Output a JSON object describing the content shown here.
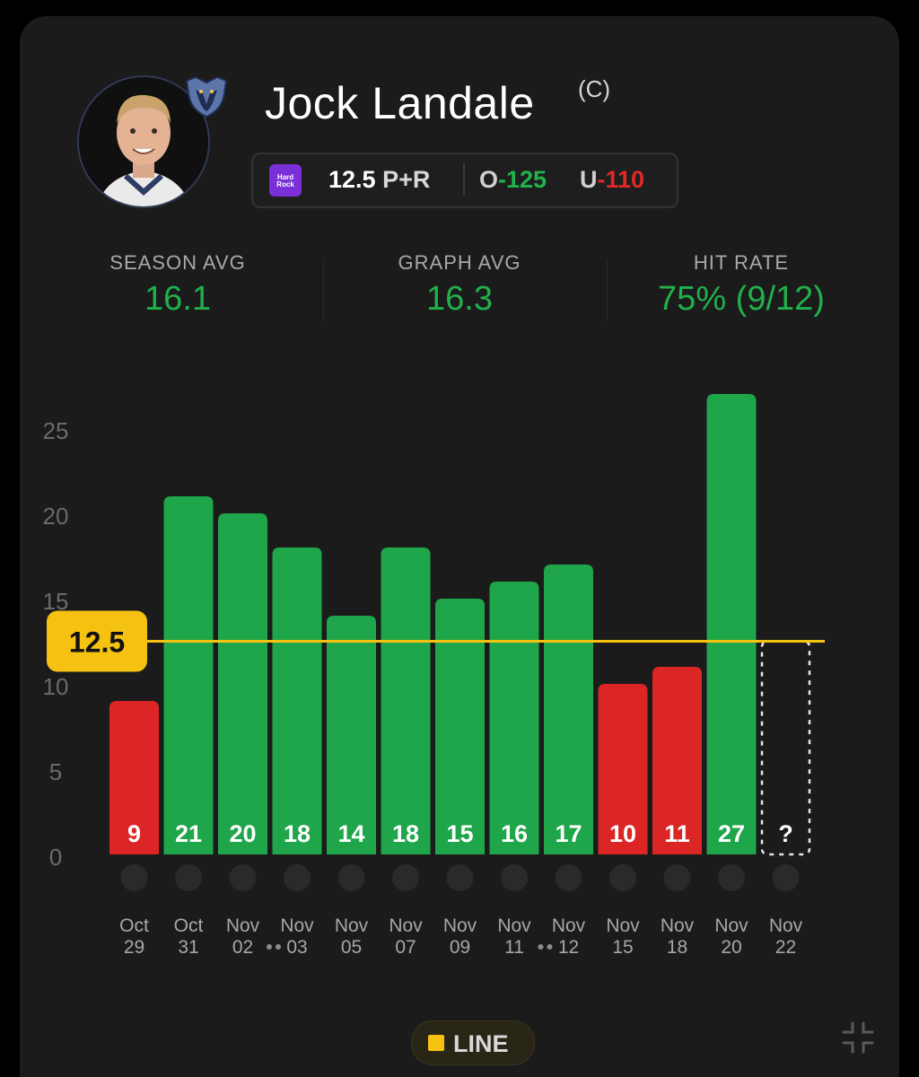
{
  "player": {
    "name": "Jock Landale",
    "position": "(C)"
  },
  "odds": {
    "sportsbook_icon": "hard-rock-bet-logo",
    "line_value": "12.5",
    "line_unit": "P+R",
    "over_label": "O",
    "over_odds": "-125",
    "under_label": "U",
    "under_odds": "-110"
  },
  "stats": {
    "season_avg_label": "SEASON AVG",
    "season_avg_value": "16.1",
    "graph_avg_label": "GRAPH AVG",
    "graph_avg_value": "16.3",
    "hit_rate_label": "HIT RATE",
    "hit_rate_value": "75% (9/12)"
  },
  "colors": {
    "over": "#1fa64a",
    "under": "#dc2626",
    "line": "#f5c211",
    "accent_text_green": "#20b04c"
  },
  "chart_data": {
    "type": "bar",
    "line_label": "12.5",
    "line": 12.5,
    "ylim": [
      0,
      25
    ],
    "yticks": [
      0,
      5,
      10,
      15,
      20,
      25
    ],
    "grid": false,
    "games": [
      {
        "value": 9,
        "label": "9",
        "month": "Oct",
        "day": "29",
        "opponent": "suns-logo",
        "double": false
      },
      {
        "value": 21,
        "label": "21",
        "month": "Oct",
        "day": "31",
        "opponent": "lakers-logo",
        "double": false
      },
      {
        "value": 20,
        "label": "20",
        "month": "Nov",
        "day": "02",
        "opponent": "raptors-logo",
        "double": true
      },
      {
        "value": 18,
        "label": "18",
        "month": "Nov",
        "day": "03",
        "opponent": "pistons-logo",
        "double": false
      },
      {
        "value": 14,
        "label": "14",
        "month": "Nov",
        "day": "05",
        "opponent": "rockets-logo",
        "double": false
      },
      {
        "value": 18,
        "label": "18",
        "month": "Nov",
        "day": "07",
        "opponent": "mavericks-logo",
        "double": false
      },
      {
        "value": 15,
        "label": "15",
        "month": "Nov",
        "day": "09",
        "opponent": "thunder-logo",
        "double": false
      },
      {
        "value": 16,
        "label": "16",
        "month": "Nov",
        "day": "11",
        "opponent": "knicks-logo",
        "double": true
      },
      {
        "value": 17,
        "label": "17",
        "month": "Nov",
        "day": "12",
        "opponent": "celtics-logo",
        "double": false
      },
      {
        "value": 10,
        "label": "10",
        "month": "Nov",
        "day": "15",
        "opponent": "cavaliers-logo",
        "double": false
      },
      {
        "value": 11,
        "label": "11",
        "month": "Nov",
        "day": "18",
        "opponent": "spurs-logo",
        "double": false
      },
      {
        "value": 27,
        "label": "27",
        "month": "Nov",
        "day": "20",
        "opponent": "kings-logo",
        "double": false
      },
      {
        "value": null,
        "label": "?",
        "month": "Nov",
        "day": "22",
        "opponent": "mavericks-logo",
        "double": false
      }
    ]
  },
  "legend": {
    "label": "LINE"
  },
  "icons": {
    "team": "grizzlies-logo",
    "collapse": "collapse-icon"
  }
}
